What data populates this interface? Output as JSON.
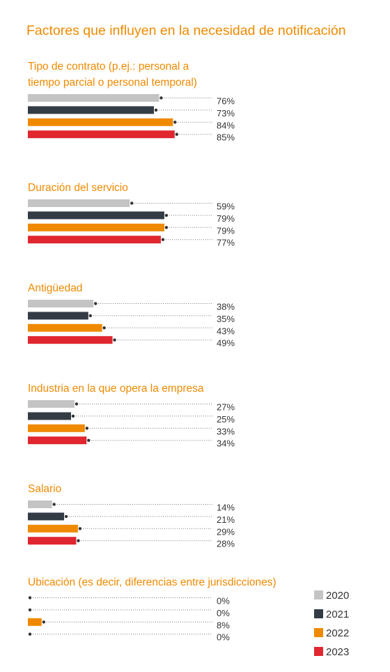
{
  "chart_data": {
    "type": "bar",
    "orientation": "horizontal",
    "title": "Factores que influyen en la necesidad de notificación",
    "unit": "%",
    "xlim": [
      0,
      100
    ],
    "grid": false,
    "legend_position": "bottom-right",
    "legend": [
      "2020",
      "2021",
      "2022",
      "2023"
    ],
    "colors": {
      "2020": "#c4c4c4",
      "2021": "#333c45",
      "2022": "#ef8a00",
      "2023": "#e0262f"
    },
    "groups": [
      {
        "label": [
          "Tipo de contrato (p.ej.: personal a",
          "tiempo parcial o personal temporal)"
        ],
        "values": [
          76,
          73,
          84,
          85
        ]
      },
      {
        "label": [
          "Duración del servicio"
        ],
        "values": [
          59,
          79,
          79,
          77
        ]
      },
      {
        "label": [
          "Antigüedad"
        ],
        "values": [
          38,
          35,
          43,
          49
        ]
      },
      {
        "label": [
          "Industria en la que opera la empresa"
        ],
        "values": [
          27,
          25,
          33,
          34
        ]
      },
      {
        "label": [
          "Salario"
        ],
        "values": [
          14,
          21,
          29,
          28
        ]
      },
      {
        "label": [
          "Ubicación (es decir, diferencias entre jurisdicciones)"
        ],
        "values": [
          0,
          0,
          8,
          0
        ]
      }
    ]
  }
}
